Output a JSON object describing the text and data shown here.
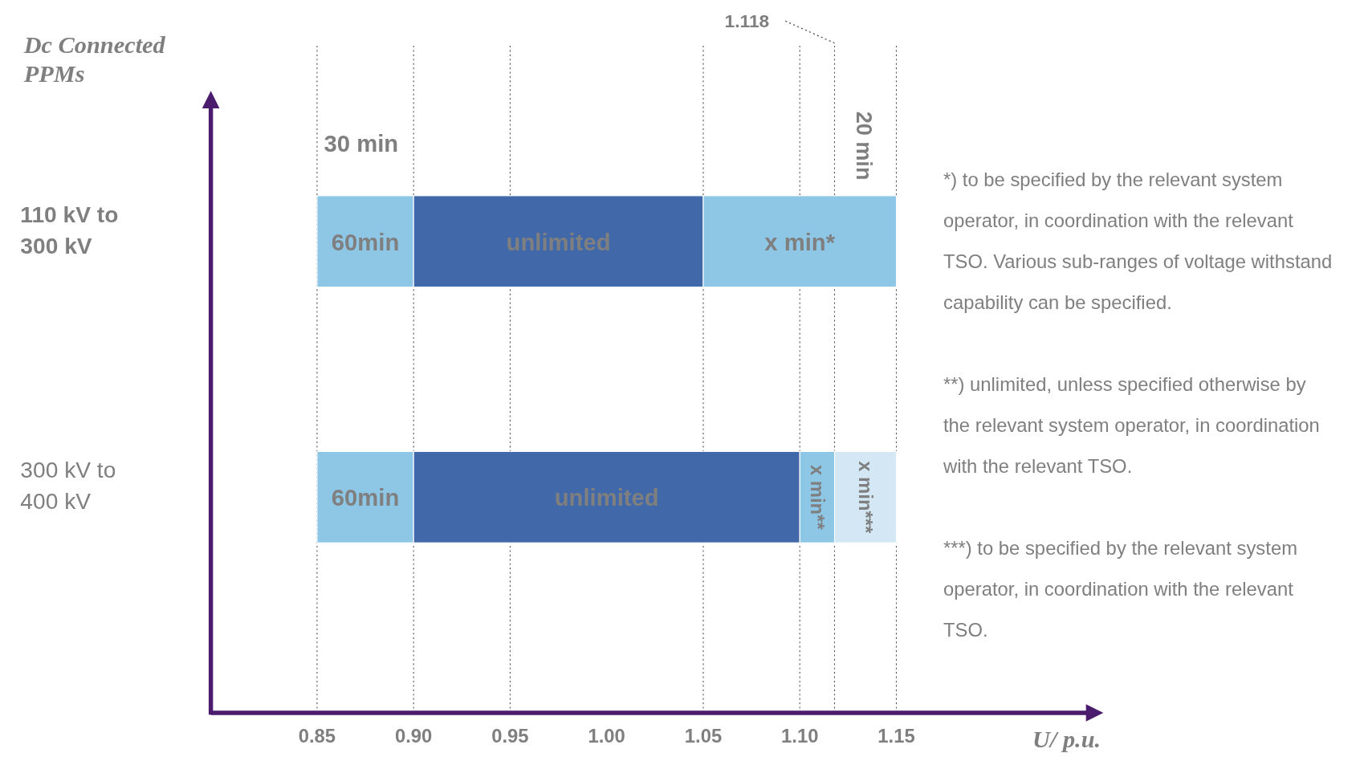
{
  "chart_data": {
    "type": "bar",
    "orientation": "horizontal",
    "ylabel": "Dc Connected PPMs",
    "xlabel": "U/ p.u.",
    "categories": [
      "110 kV to 300 kV",
      "300 kV to 400 kV"
    ],
    "series": [
      {
        "name": "60min",
        "color": "#8ec6e6",
        "base": [
          0.85,
          0.85
        ],
        "values": [
          0.05,
          0.05
        ]
      },
      {
        "name": "unlimited",
        "color": "#4169a9",
        "base": [
          0.9,
          0.9
        ],
        "values": [
          0.15,
          0.2
        ]
      },
      {
        "name": "x min*",
        "color": "#8ec6e6",
        "base": [
          1.05,
          null
        ],
        "values": [
          0.1,
          null
        ]
      },
      {
        "name": "x min**",
        "color": "#8ec6e6",
        "base": [
          null,
          1.1
        ],
        "values": [
          null,
          0.018
        ]
      },
      {
        "name": "x min***",
        "color": "#d3e8f4",
        "base": [
          null,
          1.118
        ],
        "values": [
          null,
          0.032
        ]
      }
    ],
    "xlim": [
      0.795,
      1.25
    ],
    "xticks": [
      {
        "value": 0.85,
        "label": "0.85"
      },
      {
        "value": 0.9,
        "label": "0.90"
      },
      {
        "value": 0.95,
        "label": "0.95"
      },
      {
        "value": 1.0,
        "label": "1.00"
      },
      {
        "value": 1.05,
        "label": "1.05"
      },
      {
        "value": 1.1,
        "label": "1.10"
      },
      {
        "value": 1.15,
        "label": "1.15"
      }
    ],
    "ref_lines": [
      {
        "axis": "x",
        "value": 0.85,
        "label": "30 min",
        "line_style": "dotted"
      },
      {
        "axis": "x",
        "value": 0.9,
        "line_style": "dotted"
      },
      {
        "axis": "x",
        "value": 0.95,
        "line_style": "dotted"
      },
      {
        "axis": "x",
        "value": 1.05,
        "line_style": "dotted"
      },
      {
        "axis": "x",
        "value": 1.1,
        "line_style": "dotted"
      },
      {
        "axis": "x",
        "value": 1.118,
        "label": "1.118",
        "line_style": "dotted"
      },
      {
        "axis": "x",
        "value": 1.15,
        "label": "20 min",
        "line_style": "dotted"
      }
    ],
    "annotations": [
      "*) to be specified by the relevant system operator, in coordination with the relevant TSO. Various sub-ranges of voltage withstand capability can be specified.",
      "**) unlimited, unless specified otherwise by the relevant system operator, in coordination with the relevant TSO.",
      "***) to be specified by the relevant system operator, in coordination with the relevant TSO."
    ]
  }
}
